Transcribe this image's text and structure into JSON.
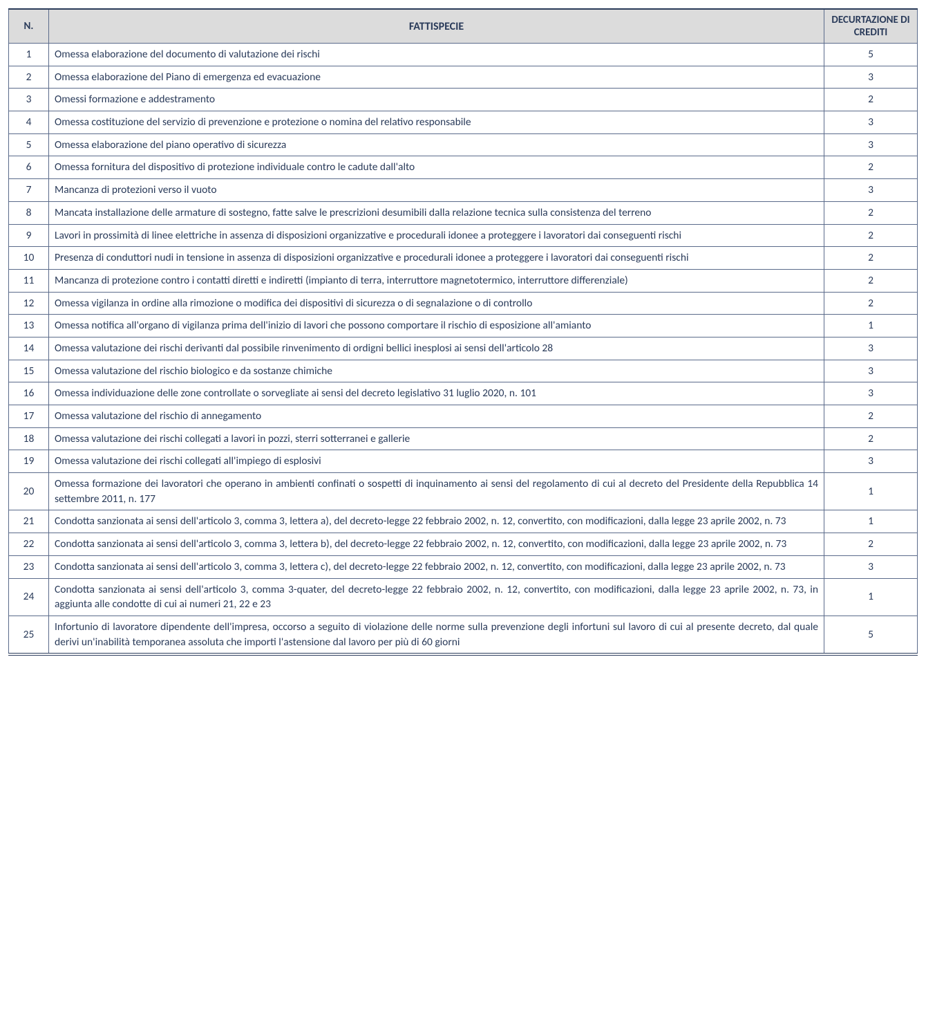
{
  "table": {
    "headers": {
      "n": "N.",
      "fattispecie": "FATTISPECIE",
      "crediti": "DECURTAZIONE DI CREDITI"
    },
    "colors": {
      "header_bg": "#dcdcdc",
      "border": "#5a6a8a",
      "text": "#2a3b5a",
      "background": "#ffffff"
    },
    "font": {
      "family": "Calibri",
      "header_size_pt": 12,
      "body_size_pt": 11
    },
    "rows": [
      {
        "n": "1",
        "fattispecie": "Omessa elaborazione del documento di valutazione dei rischi",
        "crediti": "5",
        "justify": false
      },
      {
        "n": "2",
        "fattispecie": "Omessa elaborazione del Piano di emergenza ed evacuazione",
        "crediti": "3",
        "justify": false
      },
      {
        "n": "3",
        "fattispecie": "Omessi formazione e addestramento",
        "crediti": "2",
        "justify": false
      },
      {
        "n": "4",
        "fattispecie": "Omessa costituzione del servizio di prevenzione e protezione o nomina del relativo responsabile",
        "crediti": "3",
        "justify": false
      },
      {
        "n": "5",
        "fattispecie": "Omessa elaborazione del piano operativo di sicurezza",
        "crediti": "3",
        "justify": false
      },
      {
        "n": "6",
        "fattispecie": "Omessa fornitura del dispositivo di protezione individuale contro le cadute dall'alto",
        "crediti": "2",
        "justify": false
      },
      {
        "n": "7",
        "fattispecie": "Mancanza di protezioni verso il vuoto",
        "crediti": "3",
        "justify": false
      },
      {
        "n": "8",
        "fattispecie": "Mancata installazione delle armature di sostegno, fatte salve le prescrizioni desumibili dalla relazione tecnica sulla consistenza del terreno",
        "crediti": "2",
        "justify": true
      },
      {
        "n": "9",
        "fattispecie": "Lavori in prossimità di linee elettriche in assenza di disposizioni organizzative e procedurali idonee a proteggere i lavoratori dai conseguenti rischi",
        "crediti": "2",
        "justify": true
      },
      {
        "n": "10",
        "fattispecie": "Presenza di conduttori nudi in tensione in assenza di disposizioni organizzative e procedurali idonee a proteggere i lavoratori dai conseguenti rischi",
        "crediti": "2",
        "justify": true
      },
      {
        "n": "11",
        "fattispecie": "Mancanza di protezione contro i contatti diretti e indiretti (impianto di terra, interruttore magnetotermico, interruttore differenziale)",
        "crediti": "2",
        "justify": true
      },
      {
        "n": "12",
        "fattispecie": "Omessa vigilanza in ordine alla rimozione o modifica dei dispositivi di sicurezza o di segnalazione o di controllo",
        "crediti": "2",
        "justify": true
      },
      {
        "n": "13",
        "fattispecie": "Omessa notifica all'organo di vigilanza prima dell'inizio di lavori che possono comportare il rischio di esposizione all'amianto",
        "crediti": "1",
        "justify": true
      },
      {
        "n": "14",
        "fattispecie": "Omessa valutazione dei rischi derivanti dal possibile rinvenimento di ordigni bellici inesplosi ai sensi dell'articolo 28",
        "crediti": "3",
        "justify": true
      },
      {
        "n": "15",
        "fattispecie": "Omessa valutazione del rischio biologico e da sostanze chimiche",
        "crediti": "3",
        "justify": false
      },
      {
        "n": "16",
        "fattispecie": "Omessa individuazione delle zone controllate o sorvegliate ai sensi del decreto legislativo 31 luglio 2020, n. 101",
        "crediti": "3",
        "justify": true
      },
      {
        "n": "17",
        "fattispecie": "Omessa valutazione del rischio di annegamento",
        "crediti": "2",
        "justify": false
      },
      {
        "n": "18",
        "fattispecie": "Omessa valutazione dei rischi collegati a lavori in pozzi, sterri sotterranei e gallerie",
        "crediti": "2",
        "justify": false
      },
      {
        "n": "19",
        "fattispecie": "Omessa valutazione dei rischi collegati all'impiego di esplosivi",
        "crediti": "3",
        "justify": false
      },
      {
        "n": "20",
        "fattispecie": "Omessa formazione dei lavoratori che operano in ambienti confinati o sospetti di inquinamento ai sensi del regolamento di cui al decreto del Presidente della Repubblica 14 settembre 2011, n. 177",
        "crediti": "1",
        "justify": true
      },
      {
        "n": "21",
        "fattispecie": "Condotta sanzionata ai sensi dell'articolo 3, comma 3, lettera a), del decreto-legge 22 febbraio 2002, n. 12, convertito, con modificazioni, dalla legge 23 aprile 2002, n. 73",
        "crediti": "1",
        "justify": true
      },
      {
        "n": "22",
        "fattispecie": "Condotta sanzionata ai sensi dell'articolo 3, comma 3, lettera b), del decreto-legge 22 febbraio 2002, n. 12, convertito, con modificazioni, dalla legge 23 aprile 2002, n. 73",
        "crediti": "2",
        "justify": true
      },
      {
        "n": "23",
        "fattispecie": "Condotta sanzionata ai sensi dell'articolo 3, comma 3, lettera c), del decreto-legge 22 febbraio 2002, n. 12, convertito, con modificazioni, dalla legge 23 aprile 2002, n. 73",
        "crediti": "3",
        "justify": true
      },
      {
        "n": "24",
        "fattispecie": "Condotta sanzionata ai sensi dell'articolo 3, comma 3-quater, del decreto-legge 22 febbraio 2002, n. 12, convertito, con modificazioni, dalla legge 23 aprile 2002, n. 73, in aggiunta alle condotte di cui ai numeri 21, 22 e 23",
        "crediti": "1",
        "justify": true
      },
      {
        "n": "25",
        "fattispecie": "Infortunio di lavoratore dipendente dell'impresa, occorso a seguito di violazione delle norme sulla prevenzione degli infortuni sul lavoro di cui al presente decreto, dal quale derivi un'inabilità temporanea assoluta che importi l'astensione dal lavoro per più di 60 giorni",
        "crediti": "5",
        "justify": true
      }
    ]
  }
}
